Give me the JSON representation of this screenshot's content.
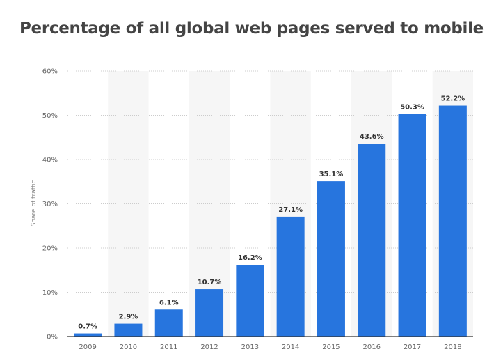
{
  "chart_data": {
    "type": "bar",
    "title": "Percentage of all global web pages served to mobile",
    "ylabel": "Share of traffic",
    "xlabel": "",
    "categories": [
      "2009",
      "2010",
      "2011",
      "2012",
      "2013",
      "2014",
      "2015",
      "2016",
      "2017",
      "2018"
    ],
    "values": [
      0.7,
      2.9,
      6.1,
      10.7,
      16.2,
      27.1,
      35.1,
      43.6,
      50.3,
      52.2
    ],
    "data_labels": [
      "0.7%",
      "2.9%",
      "6.1%",
      "10.7%",
      "16.2%",
      "27.1%",
      "35.1%",
      "43.6%",
      "50.3%",
      "52.2%"
    ],
    "ylim": [
      0,
      60
    ],
    "yticks": [
      "0%",
      "10%",
      "20%",
      "30%",
      "40%",
      "50%",
      "60%"
    ],
    "grid": true,
    "bar_color": "#2775de",
    "alt_column_color": "#f6f6f6"
  }
}
